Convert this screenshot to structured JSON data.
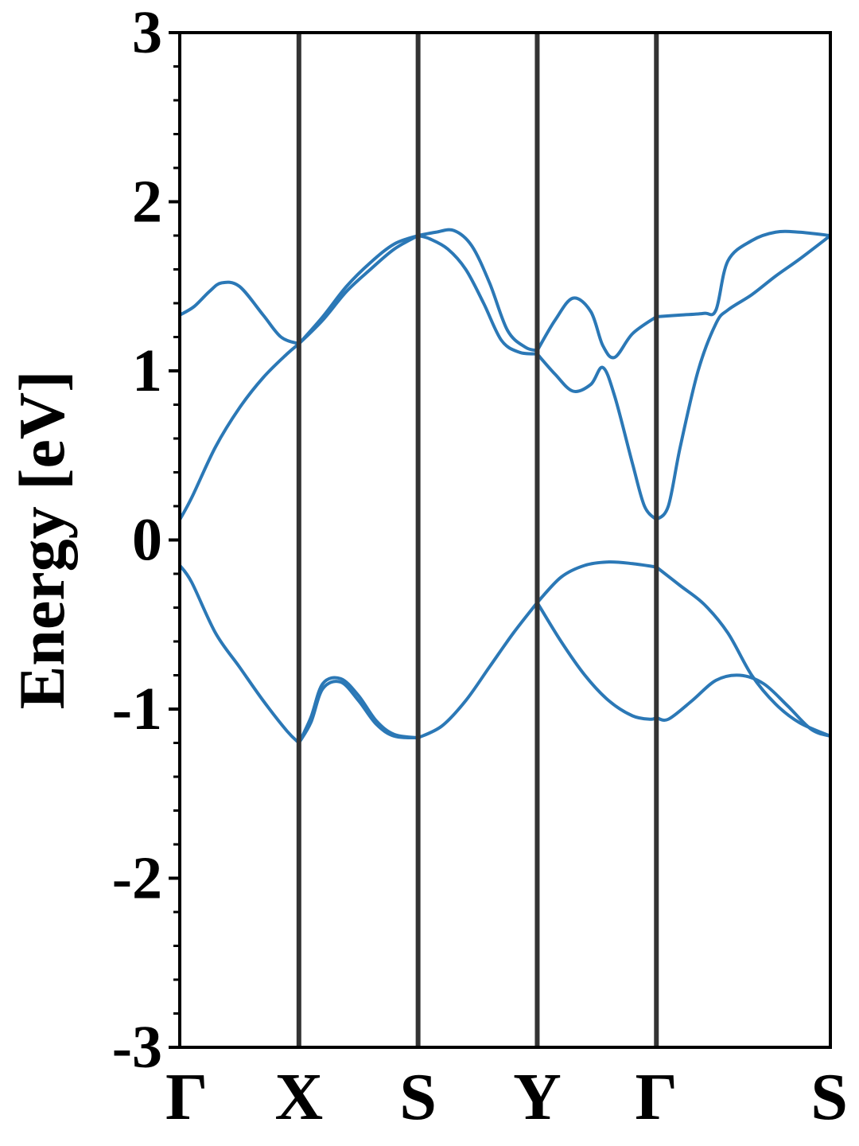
{
  "chart_data": {
    "type": "line",
    "title": "",
    "xlabel": "",
    "ylabel": "Energy [eV]",
    "ylim": [
      -3,
      3
    ],
    "yticks": [
      "3",
      "2",
      "1",
      "0",
      "-1",
      "-2",
      "-3"
    ],
    "ytick_values": [
      3,
      2,
      1,
      0,
      -1,
      -2,
      -3
    ],
    "xlim": [
      0,
      5.46
    ],
    "kpath_labels": [
      "Γ",
      "X",
      "S",
      "Y",
      "Γ",
      "S"
    ],
    "kpath_positions": [
      0,
      1,
      2,
      3,
      4,
      5.46
    ],
    "high_symmetry_lines": [
      1,
      2,
      3,
      4
    ],
    "grid": false,
    "colors": {
      "bands": "#2b78b6",
      "symmetry_lines": "#333333",
      "axes": "#000000"
    },
    "series": [
      {
        "x": [
          0,
          0.12,
          0.25,
          0.35,
          0.5,
          0.7,
          0.85,
          1.0
        ],
        "y": [
          1.33,
          1.38,
          1.47,
          1.52,
          1.5,
          1.33,
          1.2,
          1.16
        ]
      },
      {
        "x": [
          0,
          0.1,
          0.3,
          0.5,
          0.7,
          0.9,
          1.0
        ],
        "y": [
          0.12,
          0.25,
          0.55,
          0.78,
          0.96,
          1.1,
          1.16
        ]
      },
      {
        "x": [
          1.0,
          1.2,
          1.4,
          1.6,
          1.8,
          2.0
        ],
        "y": [
          1.16,
          1.3,
          1.47,
          1.6,
          1.72,
          1.8
        ]
      },
      {
        "x": [
          1.0,
          1.2,
          1.4,
          1.6,
          1.8,
          2.0
        ],
        "y": [
          1.16,
          1.32,
          1.5,
          1.64,
          1.75,
          1.8
        ]
      },
      {
        "x": [
          2.0,
          2.1,
          2.25,
          2.4,
          2.55,
          2.7,
          2.85,
          3.0
        ],
        "y": [
          1.8,
          1.78,
          1.72,
          1.6,
          1.4,
          1.18,
          1.11,
          1.1
        ]
      },
      {
        "x": [
          2.0,
          2.15,
          2.3,
          2.45,
          2.6,
          2.75,
          2.9,
          3.0
        ],
        "y": [
          1.8,
          1.82,
          1.83,
          1.74,
          1.52,
          1.24,
          1.14,
          1.12
        ]
      },
      {
        "x": [
          3.0,
          3.15,
          3.3,
          3.45,
          3.55,
          3.65,
          3.8,
          4.0
        ],
        "y": [
          1.12,
          1.3,
          1.43,
          1.35,
          1.15,
          1.08,
          1.22,
          1.32
        ]
      },
      {
        "x": [
          3.0,
          3.15,
          3.3,
          3.45,
          3.55,
          3.65,
          3.8,
          3.9,
          4.0
        ],
        "y": [
          1.1,
          0.98,
          0.88,
          0.92,
          1.02,
          0.85,
          0.45,
          0.2,
          0.12
        ]
      },
      {
        "x": [
          4.0,
          4.2,
          4.4,
          4.5,
          4.6,
          4.8,
          5.0,
          5.2,
          5.46
        ],
        "y": [
          1.32,
          1.33,
          1.34,
          1.36,
          1.65,
          1.77,
          1.82,
          1.82,
          1.8
        ]
      },
      {
        "x": [
          4.0,
          4.1,
          4.2,
          4.35,
          4.5,
          4.6,
          4.8,
          5.0,
          5.2,
          5.46
        ],
        "y": [
          0.12,
          0.2,
          0.55,
          1.0,
          1.28,
          1.36,
          1.45,
          1.56,
          1.66,
          1.8
        ]
      },
      {
        "x": [
          0,
          0.1,
          0.3,
          0.5,
          0.7,
          0.9,
          1.0
        ],
        "y": [
          -0.15,
          -0.25,
          -0.55,
          -0.75,
          -0.95,
          -1.13,
          -1.2
        ]
      },
      {
        "x": [
          1.0,
          1.1,
          1.2,
          1.35,
          1.5,
          1.65,
          1.8,
          2.0
        ],
        "y": [
          -1.2,
          -1.05,
          -0.85,
          -0.82,
          -0.92,
          -1.07,
          -1.15,
          -1.17
        ]
      },
      {
        "x": [
          1.0,
          1.1,
          1.2,
          1.35,
          1.5,
          1.65,
          1.8,
          2.0
        ],
        "y": [
          -1.2,
          -1.08,
          -0.88,
          -0.84,
          -0.95,
          -1.09,
          -1.16,
          -1.17
        ]
      },
      {
        "x": [
          2.0,
          2.2,
          2.4,
          2.6,
          2.8,
          3.0
        ],
        "y": [
          -1.17,
          -1.1,
          -0.95,
          -0.75,
          -0.55,
          -0.37
        ]
      },
      {
        "x": [
          3.0,
          3.2,
          3.4,
          3.6,
          3.8,
          4.0
        ],
        "y": [
          -0.37,
          -0.22,
          -0.15,
          -0.13,
          -0.14,
          -0.16
        ]
      },
      {
        "x": [
          3.0,
          3.2,
          3.4,
          3.6,
          3.8,
          3.95,
          4.0
        ],
        "y": [
          -0.37,
          -0.6,
          -0.8,
          -0.95,
          -1.04,
          -1.06,
          -1.05
        ]
      },
      {
        "x": [
          4.0,
          4.2,
          4.4,
          4.6,
          4.8,
          5.0,
          5.2,
          5.46
        ],
        "y": [
          -0.16,
          -0.27,
          -0.38,
          -0.55,
          -0.8,
          -0.97,
          -1.08,
          -1.16
        ]
      },
      {
        "x": [
          4.0,
          4.1,
          4.3,
          4.5,
          4.7,
          4.9,
          5.1,
          5.3,
          5.46
        ],
        "y": [
          -1.05,
          -1.06,
          -0.95,
          -0.83,
          -0.8,
          -0.85,
          -0.98,
          -1.12,
          -1.16
        ]
      }
    ]
  }
}
